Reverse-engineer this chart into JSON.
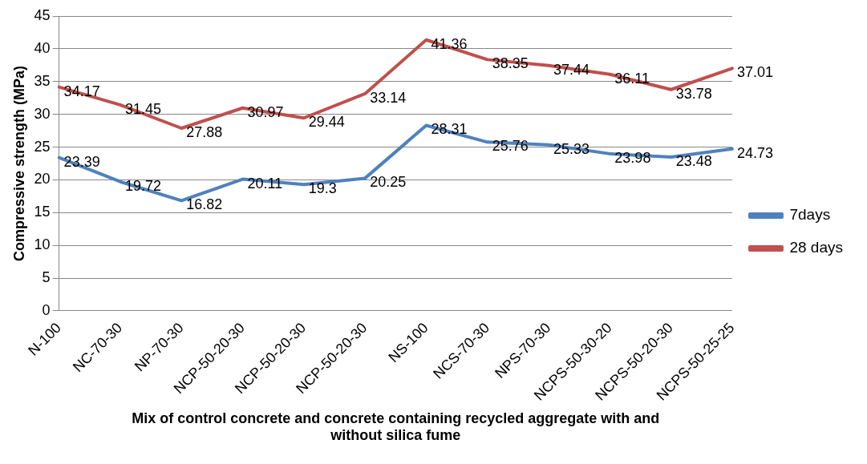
{
  "chart_data": {
    "type": "line",
    "xlabel": "Mix of control concrete and concrete containing recycled aggregate with and without silica fume",
    "ylabel": "Compressive strength (MPa)",
    "categories": [
      "N-100",
      "NC-70-30",
      "NP-70-30",
      "NCP-50-20-30",
      "NCP-50-20-30",
      "NCP-50-20-30",
      "NS-100",
      "NCS-70-30",
      "NPS-70-30",
      "NCPS-50-30-20",
      "NCPS-50-20-30",
      "NCPS-50-25-25"
    ],
    "series": [
      {
        "name": "7days",
        "color": "#4f81bd",
        "values": [
          23.39,
          19.72,
          16.82,
          20.11,
          19.3,
          20.25,
          28.31,
          25.76,
          25.33,
          23.98,
          23.48,
          24.73
        ]
      },
      {
        "name": "28 days",
        "color": "#c0504d",
        "values": [
          34.17,
          31.45,
          27.88,
          30.97,
          29.44,
          33.14,
          41.36,
          38.35,
          37.44,
          36.11,
          33.78,
          37.01
        ]
      }
    ],
    "ylim": [
      0,
      45
    ],
    "yticks": [
      0,
      5,
      10,
      15,
      20,
      25,
      30,
      35,
      40,
      45
    ],
    "grid": "y",
    "legend": "right",
    "marker": "none",
    "line_style": "solid",
    "data_labels": true
  }
}
